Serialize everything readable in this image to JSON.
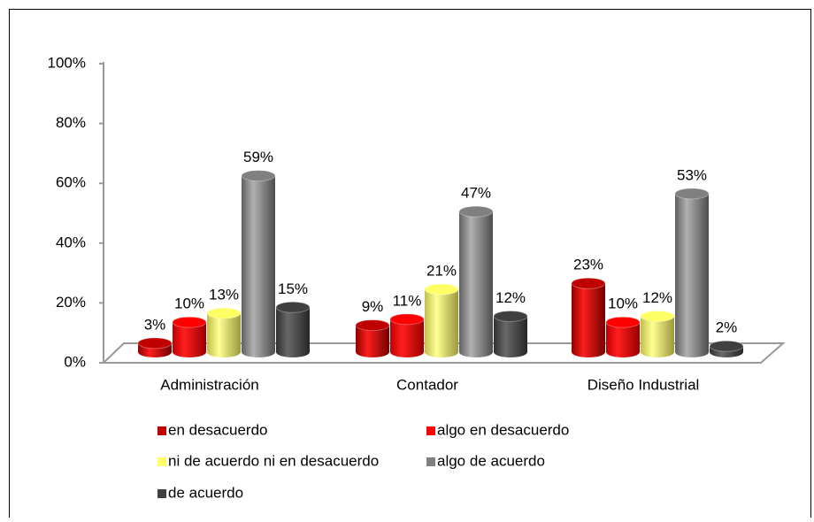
{
  "chart_data": {
    "type": "bar3d",
    "categories": [
      "Administración",
      "Contador",
      "Diseño Industrial"
    ],
    "series": [
      {
        "name": "en desacuerdo",
        "color": "#c00000",
        "values": [
          3,
          9,
          23
        ],
        "value_labels": [
          "3%",
          "9%",
          "23%"
        ]
      },
      {
        "name": "algo en desacuerdo",
        "color": "#ff0000",
        "values": [
          10,
          11,
          10
        ],
        "value_labels": [
          "10%",
          "11%",
          "10%"
        ]
      },
      {
        "name": "ni de acuerdo ni en desacuerdo",
        "color": "#ffff66",
        "values": [
          13,
          21,
          12
        ],
        "value_labels": [
          "13%",
          "21%",
          "12%"
        ]
      },
      {
        "name": "algo de acuerdo",
        "color": "#808080",
        "values": [
          59,
          47,
          53
        ],
        "value_labels": [
          "59%",
          "47%",
          "53%"
        ]
      },
      {
        "name": "de acuerdo",
        "color": "#404040",
        "values": [
          15,
          12,
          2
        ],
        "value_labels": [
          "15%",
          "12%",
          "2%"
        ]
      }
    ],
    "ylim": [
      0,
      100
    ],
    "yticks": [
      {
        "value": 0,
        "label": "0%"
      },
      {
        "value": 20,
        "label": "20%"
      },
      {
        "value": 40,
        "label": "40%"
      },
      {
        "value": 60,
        "label": "60%"
      },
      {
        "value": 80,
        "label": "80%"
      },
      {
        "value": 100,
        "label": "100%"
      }
    ],
    "legend": "bottom"
  }
}
